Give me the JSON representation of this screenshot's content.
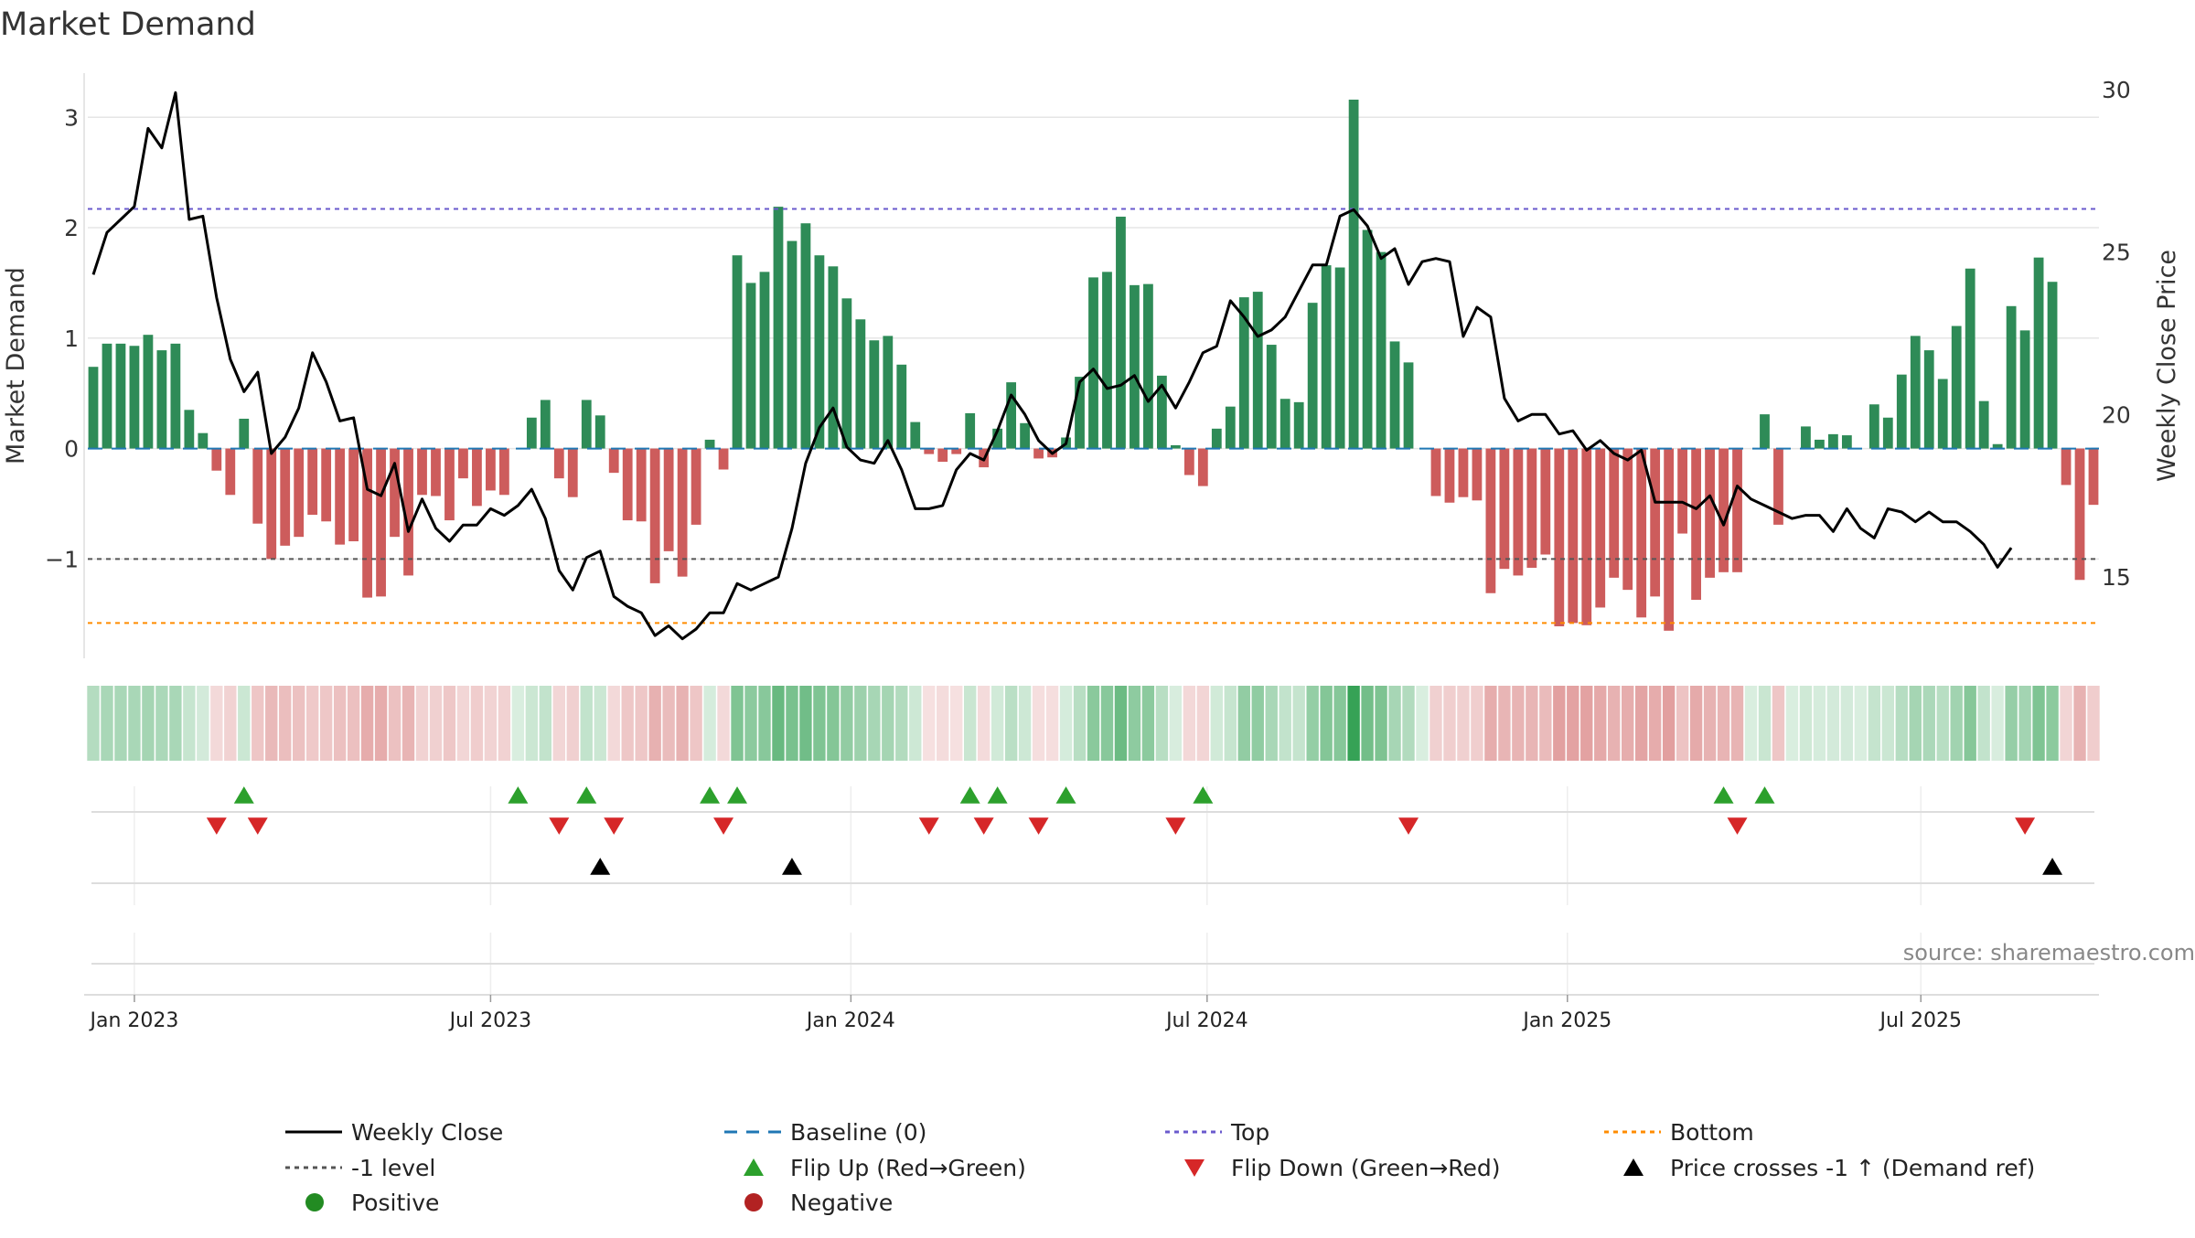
{
  "colors": {
    "positive_bar": "#2e8b57",
    "negative_bar": "#cd5c5c",
    "price_line": "#000000",
    "baseline": "#1f77b4",
    "top_line": "#6a5acd",
    "minus1_line": "#555555",
    "bottom_line": "#ff8c00",
    "flip_up": "#2ca02c",
    "flip_down": "#d62728",
    "cross_marker": "#000000",
    "grid": "#e6e6e6",
    "strip_positive": "#2e9e4f",
    "strip_negative": "#cd5c5c",
    "positive_dot": "#228b22",
    "negative_dot": "#b22222"
  },
  "chart_data": {
    "type": "bar",
    "title": "Market Demand",
    "ylabel": "Market Demand",
    "y2label": "Weekly Close Price",
    "source": "source: sharemaestro.com",
    "ylim": [
      -1.9,
      3.4
    ],
    "y2lim": [
      12.5,
      30.5
    ],
    "yticks": [
      {
        "v": 3,
        "label": "3"
      },
      {
        "v": 2,
        "label": "2"
      },
      {
        "v": 1,
        "label": "1"
      },
      {
        "v": 0,
        "label": "0"
      },
      {
        "v": -1,
        "label": "−1"
      }
    ],
    "y2ticks": [
      {
        "v": 30,
        "label": "30"
      },
      {
        "v": 25,
        "label": "25"
      },
      {
        "v": 20,
        "label": "20"
      },
      {
        "v": 15,
        "label": "15"
      }
    ],
    "xticks": [
      {
        "week": 3,
        "label": "Jan 2023"
      },
      {
        "week": 29,
        "label": "Jul 2023"
      },
      {
        "week": 55.3,
        "label": "Jan 2024"
      },
      {
        "week": 81.3,
        "label": "Jul 2024"
      },
      {
        "week": 107.6,
        "label": "Jan 2025"
      },
      {
        "week": 133.4,
        "label": "Jul 2025"
      }
    ],
    "levels": {
      "top": 2.17,
      "minus1": -1.0,
      "bottom": -1.58
    },
    "demand": [
      0.74,
      0.95,
      0.95,
      0.93,
      1.03,
      0.89,
      0.95,
      0.35,
      0.14,
      -0.2,
      -0.42,
      0.27,
      -0.68,
      -1.0,
      -0.88,
      -0.8,
      -0.6,
      -0.66,
      -0.87,
      -0.84,
      -1.35,
      -1.34,
      -0.8,
      -1.15,
      -0.42,
      -0.43,
      -0.65,
      -0.27,
      -0.52,
      -0.38,
      -0.42,
      0.0,
      0.28,
      0.44,
      -0.27,
      -0.44,
      0.44,
      0.3,
      -0.22,
      -0.65,
      -0.66,
      -1.22,
      -0.93,
      -1.16,
      -0.69,
      0.08,
      -0.19,
      1.75,
      1.5,
      1.6,
      2.19,
      1.88,
      2.04,
      1.75,
      1.65,
      1.36,
      1.17,
      0.98,
      1.02,
      0.76,
      0.24,
      -0.05,
      -0.12,
      -0.05,
      0.32,
      -0.17,
      0.18,
      0.6,
      0.23,
      -0.09,
      -0.08,
      0.1,
      0.65,
      1.55,
      1.6,
      2.1,
      1.48,
      1.49,
      0.66,
      0.03,
      -0.24,
      -0.34,
      0.18,
      0.38,
      1.37,
      1.42,
      0.94,
      0.45,
      0.42,
      1.32,
      1.66,
      1.64,
      3.16,
      1.98,
      1.78,
      0.97,
      0.78,
      0.0,
      -0.43,
      -0.49,
      -0.44,
      -0.47,
      -1.31,
      -1.09,
      -1.15,
      -1.08,
      -0.96,
      -1.61,
      -1.58,
      -1.6,
      -1.44,
      -1.17,
      -1.28,
      -1.53,
      -1.34,
      -1.65,
      -0.77,
      -1.37,
      -1.17,
      -1.12,
      -1.12,
      0.0,
      0.31,
      -0.69,
      0.0,
      0.2,
      0.08,
      0.13,
      0.12,
      0.0,
      0.4,
      0.28,
      0.67,
      1.02,
      0.89,
      0.63,
      1.11,
      1.63,
      0.43,
      0.04,
      1.29,
      1.07,
      1.73,
      1.51,
      -0.33,
      -1.19,
      -0.51
    ],
    "price": [
      24.3,
      25.6,
      26.0,
      26.4,
      28.8,
      28.2,
      29.9,
      26.0,
      26.1,
      23.6,
      21.7,
      20.7,
      21.3,
      18.8,
      19.3,
      20.2,
      21.9,
      21.0,
      19.8,
      19.9,
      17.7,
      17.5,
      18.5,
      16.4,
      17.4,
      16.5,
      16.1,
      16.6,
      16.6,
      17.1,
      16.9,
      17.2,
      17.7,
      16.8,
      15.2,
      14.6,
      15.6,
      15.8,
      14.4,
      14.1,
      13.9,
      13.2,
      13.5,
      13.1,
      13.4,
      13.9,
      13.9,
      14.8,
      14.6,
      14.8,
      15.0,
      16.5,
      18.5,
      19.6,
      20.2,
      19.0,
      18.6,
      18.5,
      19.2,
      18.3,
      17.1,
      17.1,
      17.2,
      18.3,
      18.8,
      18.6,
      19.5,
      20.6,
      20.0,
      19.2,
      18.8,
      19.1,
      21.0,
      21.4,
      20.8,
      20.9,
      21.2,
      20.4,
      20.9,
      20.2,
      21.0,
      21.9,
      22.1,
      23.5,
      23.0,
      22.4,
      22.6,
      23.0,
      23.8,
      24.6,
      24.6,
      26.1,
      26.3,
      25.8,
      24.8,
      25.1,
      24.0,
      24.7,
      24.8,
      24.7,
      22.4,
      23.3,
      23.0,
      20.5,
      19.8,
      20.0,
      20.0,
      19.4,
      19.5,
      18.9,
      19.2,
      18.8,
      18.6,
      18.9,
      17.3,
      17.3,
      17.3,
      17.1,
      17.5,
      16.6,
      17.8,
      17.4,
      17.2,
      17.0,
      16.8,
      16.9,
      16.9,
      16.4,
      17.1,
      16.5,
      16.2,
      17.1,
      17.0,
      16.7,
      17.0,
      16.7,
      16.7,
      16.4,
      16.0,
      15.3,
      15.9
    ],
    "flip_up": [
      11,
      31,
      36,
      45,
      47,
      64,
      66,
      71,
      81,
      119,
      122
    ],
    "flip_down": [
      9,
      12,
      34,
      38,
      46,
      61,
      65,
      69,
      79,
      96,
      120,
      141
    ],
    "price_cross_up": [
      37,
      51,
      143
    ]
  },
  "legend": [
    {
      "label": "Weekly Close",
      "symbol": "line-solid",
      "color": "#000000"
    },
    {
      "label": "Baseline (0)",
      "symbol": "line-dash",
      "color": "#1f77b4"
    },
    {
      "label": "Top",
      "symbol": "line-dot",
      "color": "#6a5acd"
    },
    {
      "label": "Bottom",
      "symbol": "line-dot",
      "color": "#ff8c00"
    },
    {
      "label": "-1 level",
      "symbol": "line-dot",
      "color": "#555555"
    },
    {
      "label": "Flip Up (Red→Green)",
      "symbol": "triangle-up",
      "color": "#2ca02c"
    },
    {
      "label": "Flip Down (Green→Red)",
      "symbol": "triangle-down",
      "color": "#d62728"
    },
    {
      "label": "Price crosses -1 ↑ (Demand ref)",
      "symbol": "triangle-up",
      "color": "#000000"
    },
    {
      "label": "Positive",
      "symbol": "circle",
      "color": "#228b22"
    },
    {
      "label": "Negative",
      "symbol": "circle",
      "color": "#b22222"
    }
  ]
}
